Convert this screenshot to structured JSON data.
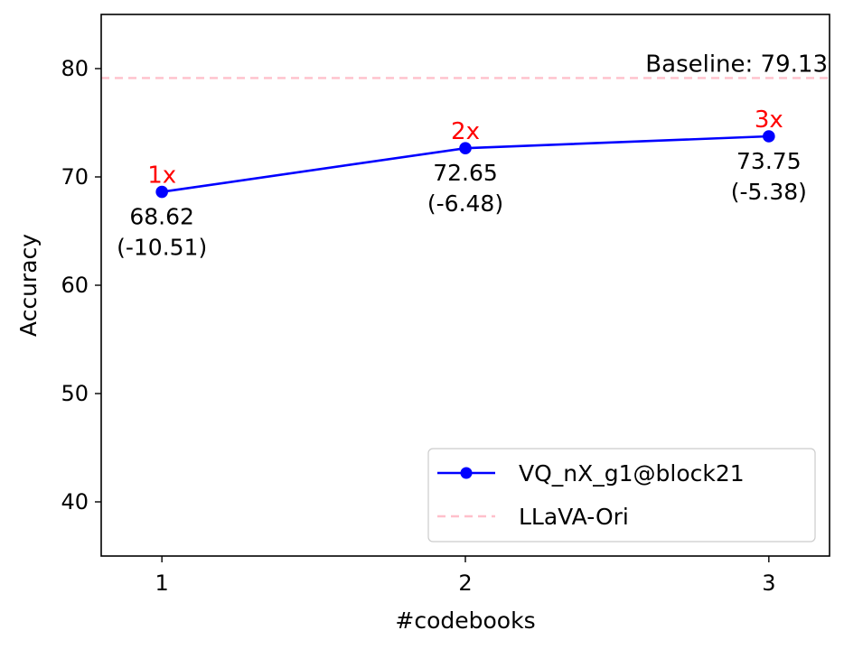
{
  "chart_data": {
    "type": "line",
    "x": [
      1,
      2,
      3
    ],
    "xticks": [
      1,
      2,
      3
    ],
    "xlim": [
      0.8,
      3.2
    ],
    "yticks": [
      40,
      50,
      60,
      70,
      80
    ],
    "ylim": [
      35,
      85
    ],
    "xlabel": "#codebooks",
    "ylabel": "Accuracy",
    "grid": false,
    "legend_position": "lower-right",
    "series": [
      {
        "name": "VQ_nX_g1@block21",
        "values": [
          68.62,
          72.65,
          73.75
        ],
        "color": "#0000ff",
        "marker": "circle",
        "line_style": "solid"
      },
      {
        "name": "LLaVA-Ori",
        "value": 79.13,
        "color": "#ffc0cb",
        "line_style": "dashed"
      }
    ],
    "baseline_label": "Baseline: 79.13",
    "point_annotations": [
      {
        "multiplier": "1x",
        "value": "68.62",
        "delta": "(-10.51)"
      },
      {
        "multiplier": "2x",
        "value": "72.65",
        "delta": "(-6.48)"
      },
      {
        "multiplier": "3x",
        "value": "73.75",
        "delta": "(-5.38)"
      }
    ],
    "multiplier_color": "#ff0000"
  }
}
